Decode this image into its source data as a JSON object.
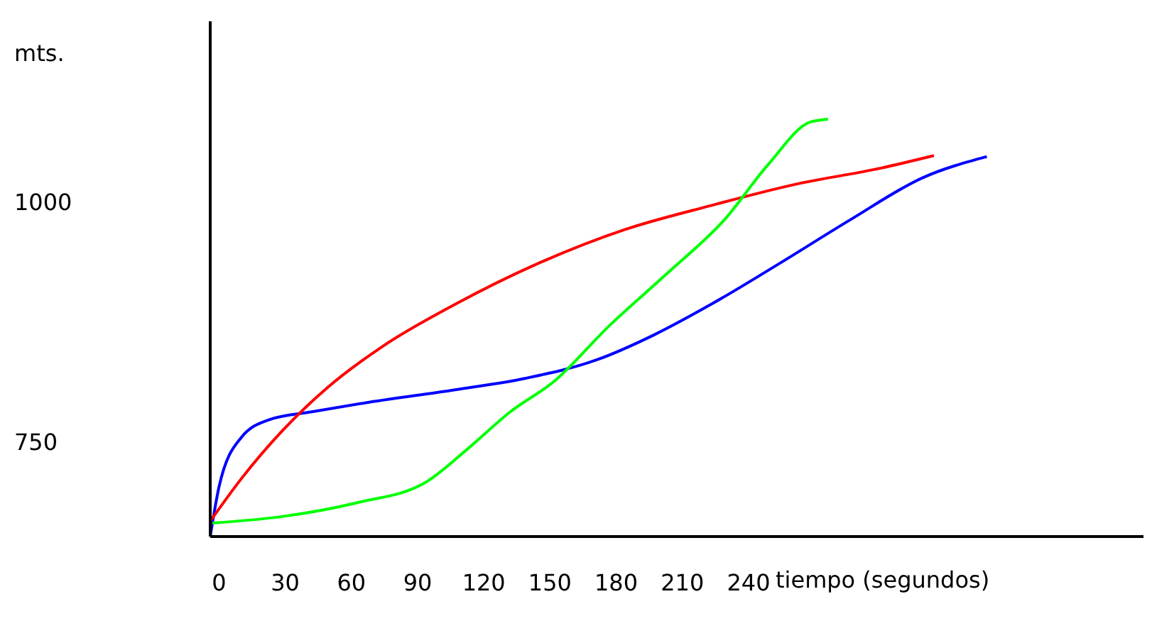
{
  "chart_data": {
    "type": "line",
    "xlabel": "tiempo (segundos)",
    "ylabel": "mts.",
    "xlim": [
      -4,
      419
    ],
    "xticks": [
      0,
      30,
      60,
      90,
      120,
      150,
      180,
      210,
      240
    ],
    "ylim": [
      651,
      1188
    ],
    "yticks": [
      750,
      1000
    ],
    "grid": false,
    "series": [
      {
        "color": "#0000ff",
        "x": [
          -4,
          0,
          10,
          23,
          42,
          68,
          107,
          139,
          171,
          197,
          223,
          255,
          286,
          319,
          348
        ],
        "values": [
          651,
          703,
          754,
          773,
          781,
          791,
          804,
          816,
          835,
          861,
          893,
          937,
          981,
          1025,
          1047
        ]
      },
      {
        "color": "#ff0000",
        "x": [
          -4,
          10,
          29,
          49,
          74,
          107,
          145,
          184,
          223,
          261,
          300,
          324
        ],
        "values": [
          667,
          711,
          762,
          806,
          849,
          893,
          936,
          971,
          996,
          1018,
          1035,
          1048
        ]
      },
      {
        "color": "#00ff00",
        "x": [
          -3,
          29,
          62,
          94,
          113,
          132,
          152,
          177,
          203,
          229,
          249,
          268,
          276
        ],
        "values": [
          665,
          672,
          686,
          708,
          743,
          781,
          813,
          871,
          925,
          981,
          1039,
          1083,
          1086
        ]
      }
    ]
  }
}
